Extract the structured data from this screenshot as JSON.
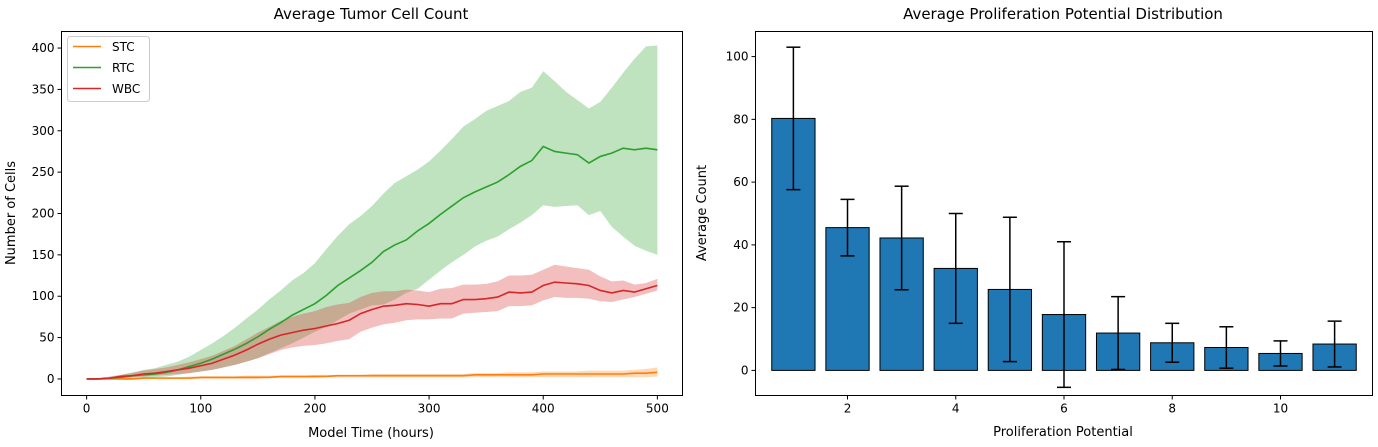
{
  "chart_data": [
    {
      "type": "line",
      "title": "Average Tumor Cell Count",
      "xlabel": "Model Time (hours)",
      "ylabel": "Number of Cells",
      "xlim": [
        -22,
        522
      ],
      "ylim": [
        -20,
        420
      ],
      "xticks": [
        0,
        100,
        200,
        300,
        400,
        500
      ],
      "yticks": [
        0,
        50,
        100,
        150,
        200,
        250,
        300,
        350,
        400
      ],
      "legend": "top-left",
      "grid": false,
      "x": [
        0,
        10,
        20,
        30,
        40,
        50,
        60,
        70,
        80,
        90,
        100,
        110,
        120,
        130,
        140,
        150,
        160,
        170,
        180,
        190,
        200,
        210,
        220,
        230,
        240,
        250,
        260,
        270,
        280,
        290,
        300,
        310,
        320,
        330,
        340,
        350,
        360,
        370,
        380,
        390,
        400,
        410,
        420,
        430,
        440,
        450,
        460,
        470,
        480,
        490,
        500
      ],
      "series": [
        {
          "name": "STC",
          "color": "#ff7f0e",
          "mean": [
            0,
            0,
            0,
            0,
            0,
            1,
            1,
            1,
            1,
            1,
            2,
            2,
            2,
            2,
            2,
            2,
            2,
            3,
            3,
            3,
            3,
            3,
            4,
            4,
            4,
            4,
            4,
            4,
            4,
            4,
            4,
            4,
            4,
            4,
            5,
            5,
            5,
            5,
            5,
            5,
            6,
            6,
            6,
            6,
            6,
            6,
            6,
            6,
            7,
            7,
            8
          ],
          "lower": [
            0,
            0,
            0,
            0,
            0,
            0,
            0,
            0,
            0,
            0,
            0,
            0,
            0,
            0,
            0,
            0,
            1,
            1,
            1,
            1,
            1,
            2,
            2,
            2,
            2,
            2,
            2,
            2,
            2,
            2,
            2,
            2,
            2,
            2,
            2,
            2,
            2,
            2,
            2,
            2,
            2,
            2,
            2,
            2,
            2,
            2,
            2,
            2,
            2,
            2,
            3
          ],
          "upper": [
            0,
            0,
            1,
            1,
            1,
            2,
            2,
            2,
            2,
            3,
            3,
            3,
            3,
            3,
            4,
            4,
            4,
            4,
            4,
            4,
            5,
            5,
            5,
            5,
            5,
            6,
            6,
            6,
            6,
            6,
            6,
            6,
            6,
            6,
            7,
            7,
            7,
            8,
            8,
            8,
            9,
            9,
            9,
            9,
            10,
            10,
            10,
            10,
            11,
            12,
            14
          ]
        },
        {
          "name": "RTC",
          "color": "#2ca02c",
          "mean": [
            0,
            0,
            1,
            2,
            4,
            5,
            6,
            8,
            11,
            15,
            19,
            24,
            30,
            36,
            43,
            51,
            60,
            68,
            77,
            84,
            91,
            101,
            113,
            122,
            131,
            141,
            154,
            162,
            168,
            179,
            188,
            199,
            209,
            219,
            226,
            232,
            238,
            247,
            257,
            264,
            281,
            275,
            273,
            271,
            261,
            269,
            273,
            279,
            277,
            279,
            277
          ],
          "lower": [
            0,
            0,
            0,
            -1,
            -1,
            0,
            2,
            3,
            5,
            7,
            9,
            11,
            14,
            17,
            21,
            25,
            31,
            37,
            43,
            50,
            57,
            63,
            71,
            79,
            84,
            89,
            90,
            96,
            104,
            109,
            120,
            131,
            141,
            150,
            160,
            167,
            172,
            181,
            189,
            198,
            210,
            208,
            209,
            210,
            198,
            203,
            184,
            172,
            161,
            155,
            150
          ],
          "upper": [
            0,
            1,
            2,
            5,
            8,
            11,
            13,
            17,
            21,
            27,
            35,
            43,
            52,
            62,
            73,
            84,
            96,
            107,
            119,
            128,
            140,
            157,
            173,
            187,
            197,
            209,
            224,
            237,
            245,
            253,
            263,
            276,
            290,
            305,
            314,
            324,
            330,
            336,
            347,
            352,
            372,
            360,
            347,
            337,
            327,
            335,
            352,
            370,
            387,
            402,
            403
          ]
        },
        {
          "name": "WBC",
          "color": "#d62728",
          "mean": [
            0,
            0,
            1,
            3,
            4,
            6,
            7,
            9,
            11,
            13,
            16,
            19,
            24,
            29,
            35,
            42,
            48,
            53,
            56,
            59,
            61,
            64,
            67,
            71,
            79,
            84,
            88,
            89,
            91,
            90,
            88,
            91,
            91,
            96,
            96,
            97,
            99,
            105,
            104,
            105,
            113,
            117,
            116,
            115,
            113,
            107,
            104,
            107,
            105,
            109,
            113
          ],
          "lower": [
            0,
            0,
            0,
            1,
            2,
            3,
            4,
            5,
            6,
            7,
            9,
            11,
            14,
            17,
            21,
            25,
            30,
            35,
            38,
            40,
            41,
            43,
            46,
            48,
            57,
            62,
            66,
            68,
            71,
            72,
            72,
            73,
            73,
            79,
            80,
            81,
            82,
            88,
            88,
            89,
            95,
            99,
            98,
            98,
            97,
            94,
            93,
            96,
            99,
            103,
            107
          ],
          "upper": [
            0,
            1,
            3,
            5,
            7,
            10,
            12,
            14,
            17,
            20,
            24,
            28,
            34,
            40,
            48,
            56,
            63,
            70,
            75,
            79,
            82,
            87,
            90,
            92,
            99,
            104,
            106,
            106,
            108,
            107,
            105,
            109,
            110,
            114,
            114,
            115,
            118,
            125,
            125,
            126,
            132,
            138,
            136,
            134,
            132,
            124,
            118,
            119,
            114,
            116,
            121
          ]
        }
      ]
    },
    {
      "type": "bar",
      "title": "Average Proliferation Potential Distribution",
      "xlabel": "Proliferation Potential",
      "ylabel": "Average Count",
      "xlim": [
        0.3,
        11.7
      ],
      "ylim": [
        -8,
        108
      ],
      "xticks": [
        2,
        4,
        6,
        8,
        10
      ],
      "yticks": [
        0,
        20,
        40,
        60,
        80,
        100
      ],
      "bar_color": "#1f77b4",
      "grid": false,
      "categories": [
        1,
        2,
        3,
        4,
        5,
        6,
        7,
        8,
        9,
        10,
        11
      ],
      "values": [
        80.3,
        45.5,
        42.2,
        32.5,
        25.8,
        17.8,
        11.9,
        8.8,
        7.3,
        5.4,
        8.4
      ],
      "errors": [
        22.7,
        9.0,
        16.5,
        17.5,
        23.0,
        23.2,
        11.6,
        6.2,
        6.6,
        4.0,
        7.3
      ]
    }
  ]
}
